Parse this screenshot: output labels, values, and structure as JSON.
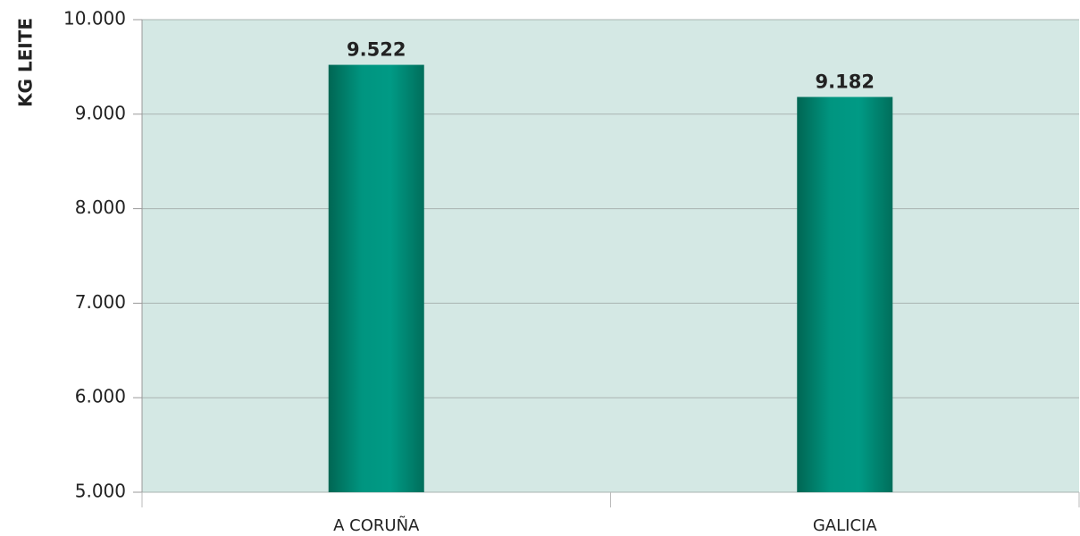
{
  "chart_data": {
    "type": "bar",
    "ylabel": "KG LEITE",
    "categories": [
      "A CORUÑA",
      "GALICIA"
    ],
    "values": [
      9522,
      9182
    ],
    "value_labels": [
      "9.522",
      "9.182"
    ],
    "color": "#009580",
    "background": "#d4e8e4",
    "ylim": [
      5000,
      10000
    ],
    "yticks": [
      {
        "value": 5000,
        "label": "5.000"
      },
      {
        "value": 6000,
        "label": "6.000"
      },
      {
        "value": 7000,
        "label": "7.000"
      },
      {
        "value": 8000,
        "label": "8.000"
      },
      {
        "value": 9000,
        "label": "9.000"
      },
      {
        "value": 10000,
        "label": "10.000"
      }
    ],
    "grid": true
  }
}
